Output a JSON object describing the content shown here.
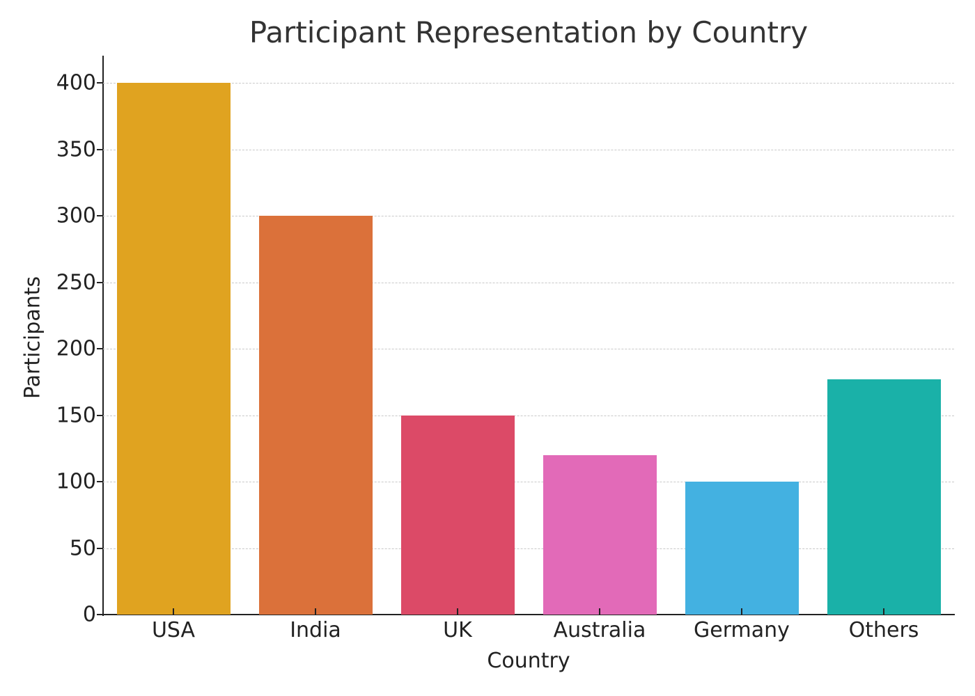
{
  "chart_data": {
    "type": "bar",
    "title": "Participant Representation by Country",
    "xlabel": "Country",
    "ylabel": "Participants",
    "categories": [
      "USA",
      "India",
      "UK",
      "Australia",
      "Germany",
      "Others"
    ],
    "values": [
      400,
      300,
      150,
      120,
      100,
      177
    ],
    "colors": [
      "#E0A320",
      "#DB713A",
      "#DC4A67",
      "#E26AB8",
      "#43B1E1",
      "#1AB1A8"
    ],
    "ylim": [
      0,
      420
    ],
    "yticks": [
      0,
      50,
      100,
      150,
      200,
      250,
      300,
      350,
      400
    ],
    "grid": {
      "y": true,
      "style": "dashed",
      "color": "#c8c8c8"
    },
    "legend": null
  }
}
